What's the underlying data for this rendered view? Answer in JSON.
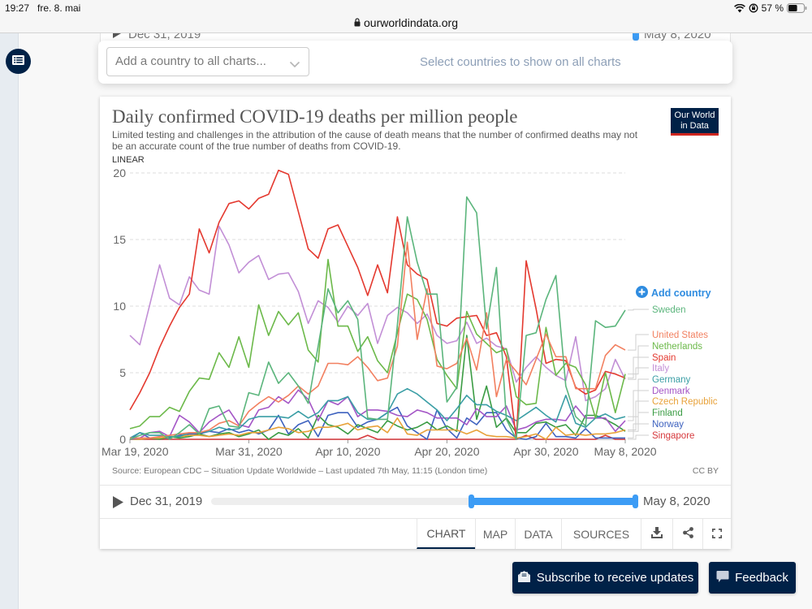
{
  "status_bar": {
    "time": "19:27",
    "date": "fre. 8. mai",
    "battery": "57 %",
    "battery_level": 0.57
  },
  "browser": {
    "url": "ourworldindata.org"
  },
  "previous_chart_peek": {
    "start_label": "Dec 31, 2019",
    "end_label": "May 8, 2020"
  },
  "country_selector": {
    "placeholder": "Add a country to all charts...",
    "hint": "Select countries to show on all charts"
  },
  "chart_card": {
    "logo": {
      "line1": "Our World",
      "line2": "in Data"
    },
    "add_country_label": "Add country",
    "source": "Source: European CDC – Situation Update Worldwide – Last updated 7th May, 11:15 (London time)",
    "license": "CC BY",
    "timeline": {
      "start_label": "Dec 31, 2019",
      "end_label": "May 8, 2020",
      "selected_range_fraction": [
        0.612,
        1.0
      ]
    },
    "tabs": [
      {
        "label": "CHART",
        "active": true
      },
      {
        "label": "MAP",
        "active": false
      },
      {
        "label": "DATA",
        "active": false
      },
      {
        "label": "SOURCES",
        "active": false
      }
    ],
    "tool_icons": [
      "download-icon",
      "share-icon",
      "fullscreen-icon"
    ]
  },
  "footer_buttons": {
    "subscribe": "Subscribe to receive updates",
    "feedback": "Feedback"
  },
  "colors": {
    "brand_navy": "#002147",
    "accent_blue": "#3c9cf5",
    "logo_red": "#ce261e"
  },
  "chart_data": {
    "type": "line",
    "title": "Daily confirmed COVID-19 deaths per million people",
    "subtitle": "Limited testing and challenges in the attribution of the cause of death means that the number of confirmed deaths may not be an accurate count of the true number of deaths from COVID-19.",
    "scale": "LINEAR",
    "xlabel": "",
    "ylabel": "",
    "x_start": "2020-03-19",
    "x_end": "2020-05-08",
    "x_step": "1 day",
    "ylim": [
      0,
      20
    ],
    "y_ticks": [
      0,
      5,
      10,
      15,
      20
    ],
    "x_ticks": [
      {
        "date": "2020-03-19",
        "label": "Mar 19, 2020"
      },
      {
        "date": "2020-03-31",
        "label": "Mar 31, 2020"
      },
      {
        "date": "2020-04-10",
        "label": "Apr 10, 2020"
      },
      {
        "date": "2020-04-20",
        "label": "Apr 20, 2020"
      },
      {
        "date": "2020-04-30",
        "label": "Apr 30, 2020"
      },
      {
        "date": "2020-05-08",
        "label": "May 8, 2020"
      }
    ],
    "grid": true,
    "legend_position": "right (end-of-line labels)",
    "series": [
      {
        "name": "Sweden",
        "color": "#5bb57c",
        "values": [
          0.0,
          0.3,
          0.5,
          0.5,
          0.0,
          0.5,
          1.1,
          0.4,
          2.3,
          2.5,
          1.0,
          0.9,
          3.5,
          3.3,
          5.8,
          4.2,
          5.0,
          4.0,
          2.7,
          7.0,
          11.3,
          9.5,
          10.4,
          9.0,
          1.6,
          1.5,
          1.5,
          8.6,
          16.7,
          13.3,
          10.9,
          10.9,
          2.8,
          3.9,
          18.2,
          17.0,
          8.3,
          12.9,
          1.5,
          0.0,
          7.8,
          8.0,
          10.5,
          12.3,
          4.0,
          1.7,
          1.0,
          8.9,
          8.4,
          8.5,
          9.7
        ]
      },
      {
        "name": "United States",
        "color": "#f28060",
        "values": [
          0.1,
          0.1,
          0.1,
          0.2,
          0.3,
          0.4,
          0.5,
          0.5,
          0.7,
          1.2,
          1.4,
          1.0,
          2.1,
          2.7,
          3.2,
          2.8,
          3.3,
          4.0,
          3.4,
          4.0,
          5.7,
          5.7,
          5.6,
          6.2,
          5.4,
          4.4,
          4.6,
          7.0,
          14.8,
          7.5,
          11.3,
          5.5,
          5.3,
          5.7,
          7.6,
          5.2,
          9.5,
          3.2,
          6.0,
          5.1,
          4.1,
          6.0,
          7.9,
          6.2,
          6.2,
          3.8,
          3.8,
          3.8,
          6.3,
          7.1,
          6.7
        ]
      },
      {
        "name": "Netherlands",
        "color": "#6cb94a",
        "values": [
          0.8,
          1.0,
          1.7,
          1.7,
          2.4,
          2.1,
          3.6,
          4.6,
          4.5,
          6.5,
          5.4,
          7.7,
          5.4,
          10.1,
          7.8,
          9.6,
          8.6,
          9.5,
          6.7,
          5.8,
          13.5,
          8.5,
          8.5,
          6.6,
          7.7,
          5.9,
          5.0,
          8.0,
          10.9,
          10.5,
          9.0,
          6.0,
          4.8,
          3.8,
          9.6,
          7.9,
          7.2,
          6.5,
          6.8,
          3.2,
          2.6,
          2.7,
          8.4,
          4.8,
          5.7,
          5.4,
          4.1,
          1.6,
          5.0,
          2.0,
          4.9
        ]
      },
      {
        "name": "Spain",
        "color": "#e4392f",
        "values": [
          2.2,
          3.5,
          5.0,
          6.9,
          8.5,
          9.9,
          10.9,
          15.8,
          14.0,
          16.3,
          17.7,
          17.9,
          17.3,
          18.1,
          18.4,
          20.2,
          19.9,
          17.1,
          14.3,
          13.6,
          15.8,
          16.1,
          14.5,
          12.9,
          10.8,
          13.1,
          11.0,
          16.7,
          13.1,
          12.4,
          12.0,
          8.7,
          8.5,
          9.1,
          9.2,
          9.3,
          7.8,
          8.0,
          6.2,
          0.0,
          13.4,
          9.8,
          5.7,
          6.0,
          5.9,
          3.9,
          3.4,
          3.7,
          5.1,
          4.9,
          4.6
        ]
      },
      {
        "name": "Italy",
        "color": "#c28fd6",
        "values": [
          7.8,
          7.1,
          10.1,
          13.1,
          10.6,
          10.1,
          12.2,
          11.2,
          10.9,
          16.0,
          14.6,
          12.5,
          13.3,
          13.8,
          12.0,
          12.4,
          12.5,
          11.1,
          8.7,
          10.4,
          9.9,
          8.8,
          10.0,
          9.3,
          10.2,
          7.2,
          9.3,
          9.9,
          9.5,
          8.7,
          9.4,
          7.8,
          7.2,
          7.4,
          8.8,
          7.2,
          7.6,
          7.0,
          6.8,
          4.3,
          5.4,
          6.2,
          5.4,
          4.8,
          4.4,
          7.7,
          2.9,
          3.2,
          3.8,
          6.0,
          4.5
        ]
      },
      {
        "name": "Germany",
        "color": "#3a9ea5",
        "values": [
          0.1,
          0.5,
          0.3,
          0.3,
          0.2,
          0.2,
          0.5,
          0.5,
          0.6,
          0.9,
          0.7,
          0.8,
          1.5,
          1.7,
          1.7,
          1.7,
          1.6,
          2.1,
          1.6,
          2.0,
          2.9,
          2.9,
          3.2,
          2.0,
          1.5,
          1.5,
          2.0,
          3.4,
          3.8,
          3.4,
          2.8,
          2.2,
          1.4,
          2.3,
          3.3,
          2.6,
          2.6,
          2.1,
          1.8,
          1.4,
          1.9,
          2.4,
          1.8,
          1.3,
          3.3,
          1.2,
          0.9,
          1.6,
          1.9,
          1.5,
          1.7
        ]
      },
      {
        "name": "Denmark",
        "color": "#a456c6",
        "values": [
          0.0,
          0.1,
          0.5,
          0.6,
          0.2,
          1.8,
          1.3,
          0.5,
          1.3,
          1.8,
          2.2,
          1.1,
          0.9,
          2.2,
          2.4,
          3.2,
          2.7,
          3.7,
          3.0,
          1.4,
          2.9,
          2.6,
          3.2,
          1.7,
          2.2,
          2.2,
          2.1,
          1.8,
          1.7,
          2.2,
          2.0,
          1.6,
          1.6,
          1.6,
          1.1,
          2.3,
          1.7,
          1.7,
          2.5,
          0.7,
          0.9,
          1.3,
          1.5,
          1.5,
          1.4,
          2.5,
          1.6,
          1.6,
          1.6,
          0.6,
          1.4
        ]
      },
      {
        "name": "Czech Republic",
        "color": "#e8a23a",
        "values": [
          0.0,
          0.0,
          0.1,
          0.1,
          0.2,
          0.2,
          0.3,
          0.3,
          0.2,
          0.3,
          0.4,
          0.3,
          0.5,
          0.5,
          0.7,
          0.9,
          0.8,
          0.5,
          0.6,
          0.9,
          0.9,
          1.0,
          1.2,
          0.7,
          0.9,
          1.0,
          0.5,
          1.6,
          0.4,
          0.3,
          0.7,
          0.7,
          0.7,
          0.7,
          0.4,
          0.7,
          0.3,
          0.2,
          0.2,
          0.1,
          0.2,
          0.4,
          0.0,
          0.9,
          0.3,
          0.4,
          0.3,
          0.4,
          0.4,
          0.5,
          0.7
        ]
      },
      {
        "name": "Finland",
        "color": "#3b9c44",
        "values": [
          0.0,
          0.0,
          0.1,
          0.0,
          0.2,
          0.1,
          0.2,
          0.4,
          0.2,
          0.4,
          0.5,
          0.2,
          0.4,
          0.7,
          0.0,
          0.5,
          0.3,
          0.8,
          0.1,
          1.8,
          1.1,
          0.9,
          0.4,
          1.1,
          0.8,
          0.5,
          1.4,
          1.0,
          0.7,
          0.9,
          1.3,
          0.7,
          1.0,
          0.6,
          7.8,
          1.5,
          4.0,
          0.9,
          1.6,
          0.5,
          0.5,
          1.2,
          1.3,
          0.9,
          1.1,
          0.3,
          1.8,
          1.8,
          1.5,
          1.1,
          0.6
        ]
      },
      {
        "name": "Norway",
        "color": "#3e62bf",
        "values": [
          0.0,
          0.5,
          0.1,
          0.1,
          0.1,
          0.3,
          0.4,
          0.4,
          0.6,
          0.5,
          0.8,
          0.5,
          0.7,
          0.4,
          0.7,
          1.8,
          0.4,
          1.1,
          1.4,
          0.2,
          1.8,
          2.0,
          2.0,
          0.9,
          1.3,
          1.5,
          2.0,
          2.4,
          1.0,
          0.5,
          0.0,
          2.2,
          0.8,
          0.1,
          1.6,
          1.1,
          2.0,
          2.0,
          0.7,
          0.1,
          0.0,
          0.2,
          1.2,
          0.2,
          0.2,
          0.1,
          0.8,
          0.1,
          0.1,
          0.1,
          0.1
        ]
      },
      {
        "name": "Singapore",
        "color": "#d6393d",
        "values": [
          0.0,
          0.0,
          0.0,
          0.0,
          0.0,
          0.0,
          0.0,
          0.0,
          0.0,
          0.0,
          0.0,
          0.0,
          0.0,
          0.0,
          0.0,
          0.0,
          0.0,
          0.0,
          0.0,
          0.0,
          0.0,
          0.0,
          0.0,
          0.0,
          0.3,
          0.0,
          0.0,
          0.0,
          0.0,
          0.0,
          0.0,
          0.0,
          0.0,
          0.0,
          0.0,
          0.0,
          0.0,
          0.0,
          0.0,
          0.0,
          0.3,
          0.0,
          0.0,
          0.0,
          0.0,
          0.0,
          0.0,
          0.0,
          0.3,
          0.0,
          0.0
        ]
      }
    ]
  }
}
